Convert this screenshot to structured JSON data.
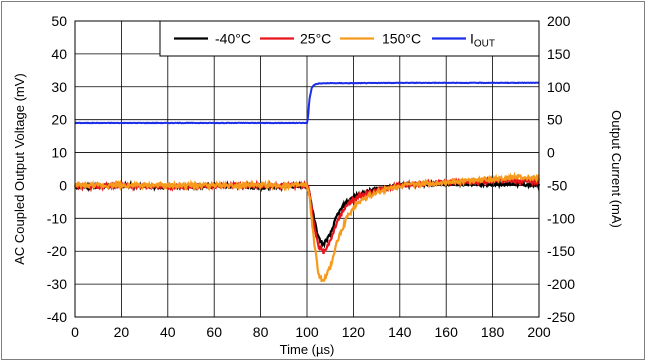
{
  "chart_data": {
    "type": "line",
    "x_axis": {
      "label": "Time (µs)",
      "min": 0,
      "max": 200,
      "ticks": [
        0,
        20,
        40,
        60,
        80,
        100,
        120,
        140,
        160,
        180,
        200
      ]
    },
    "y_axis_left": {
      "label": "AC Coupled Output Voltage (mV)",
      "min": -40,
      "max": 50,
      "ticks": [
        -40,
        -30,
        -20,
        -10,
        0,
        10,
        20,
        30,
        40,
        50
      ]
    },
    "y_axis_right": {
      "label": "Output Current (mA)",
      "min": -250,
      "max": 200,
      "ticks": [
        -250,
        -200,
        -150,
        -100,
        -50,
        0,
        50,
        100,
        150,
        200
      ]
    },
    "grid": true,
    "legend_position": "top-right",
    "series": [
      {
        "name": "-40°C",
        "color": "#000000",
        "axis": "left",
        "x": [
          0,
          20,
          40,
          60,
          80,
          98,
          100,
          101,
          103,
          105,
          107,
          110,
          113,
          117,
          122,
          130,
          140,
          150,
          160,
          170,
          180,
          190,
          200
        ],
        "y": [
          -0.5,
          0,
          -0.5,
          0,
          -0.5,
          0,
          0,
          -2,
          -10,
          -16,
          -18,
          -15,
          -9,
          -5,
          -3,
          -1,
          0,
          0.5,
          0.5,
          0.5,
          0.5,
          0.5,
          0
        ]
      },
      {
        "name": "25°C",
        "color": "#e8141c",
        "axis": "left",
        "x": [
          0,
          20,
          40,
          60,
          80,
          98,
          100,
          101,
          103,
          105,
          107,
          110,
          113,
          117,
          122,
          130,
          140,
          150,
          160,
          170,
          180,
          190,
          200
        ],
        "y": [
          -0.5,
          0,
          -0.5,
          0,
          0,
          0,
          0,
          -2,
          -12,
          -18.5,
          -20.5,
          -17,
          -11,
          -6,
          -3.5,
          -1.5,
          0,
          0.5,
          1,
          1,
          1.5,
          1.5,
          1
        ]
      },
      {
        "name": "150°C",
        "color": "#f59a1c",
        "axis": "left",
        "x": [
          0,
          20,
          40,
          60,
          80,
          98,
          100,
          101,
          103,
          105,
          107,
          110,
          113,
          117,
          122,
          130,
          140,
          150,
          160,
          170,
          180,
          190,
          200
        ],
        "y": [
          0,
          0,
          0,
          0,
          0,
          0,
          0,
          -3,
          -17,
          -27,
          -29.5,
          -25,
          -17,
          -10,
          -5,
          -2,
          0,
          0.5,
          1,
          1.5,
          2,
          2.5,
          2
        ]
      },
      {
        "name": "I_OUT",
        "name_main": "I",
        "name_sub": "OUT",
        "color": "#1c2ee8",
        "axis": "right",
        "x": [
          0,
          20,
          40,
          60,
          80,
          100,
          100.5,
          101,
          102,
          103,
          105,
          110,
          120,
          140,
          160,
          180,
          200
        ],
        "y": [
          45,
          45,
          45,
          45,
          45,
          45,
          55,
          80,
          98,
          103,
          105,
          105.5,
          105.5,
          106,
          106,
          106,
          106
        ]
      }
    ]
  }
}
